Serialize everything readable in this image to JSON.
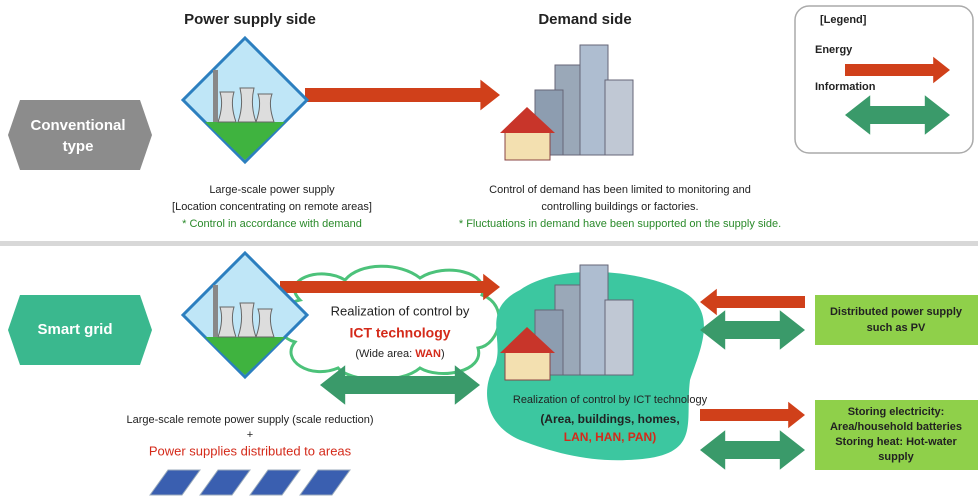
{
  "headers": {
    "supply": "Power supply side",
    "demand": "Demand side"
  },
  "legend": {
    "title": "[Legend]",
    "energy": "Energy",
    "information": "Information"
  },
  "conventional": {
    "label": [
      "Conventional",
      "type"
    ],
    "supply_text": [
      "Large-scale power supply",
      "[Location concentrating on remote areas]",
      "* Control in accordance with demand"
    ],
    "demand_text": [
      "Control of demand has been limited to monitoring and",
      "controlling buildings or factories.",
      "* Fluctuations in demand have been supported on the supply side."
    ]
  },
  "smart_grid": {
    "label": "Smart grid",
    "cloud_text": {
      "line1": "Realization of control by",
      "line2": "ICT technology",
      "line3_prefix": "(Wide area: ",
      "line3_highlight": "WAN",
      "line3_suffix": ")"
    },
    "supply_text": [
      "Large-scale remote power supply (scale reduction)",
      "+",
      "Power supplies distributed to areas"
    ],
    "demand_text": [
      "Realization of control by ICT technology",
      "(Area, buildings, homes,",
      "LAN, HAN, PAN)"
    ],
    "distributed_box": [
      "Distributed power supply",
      "such as PV"
    ],
    "storage_box": [
      "Storing electricity:",
      "Area/household batteries",
      "Storing heat: Hot-water",
      "supply"
    ]
  }
}
